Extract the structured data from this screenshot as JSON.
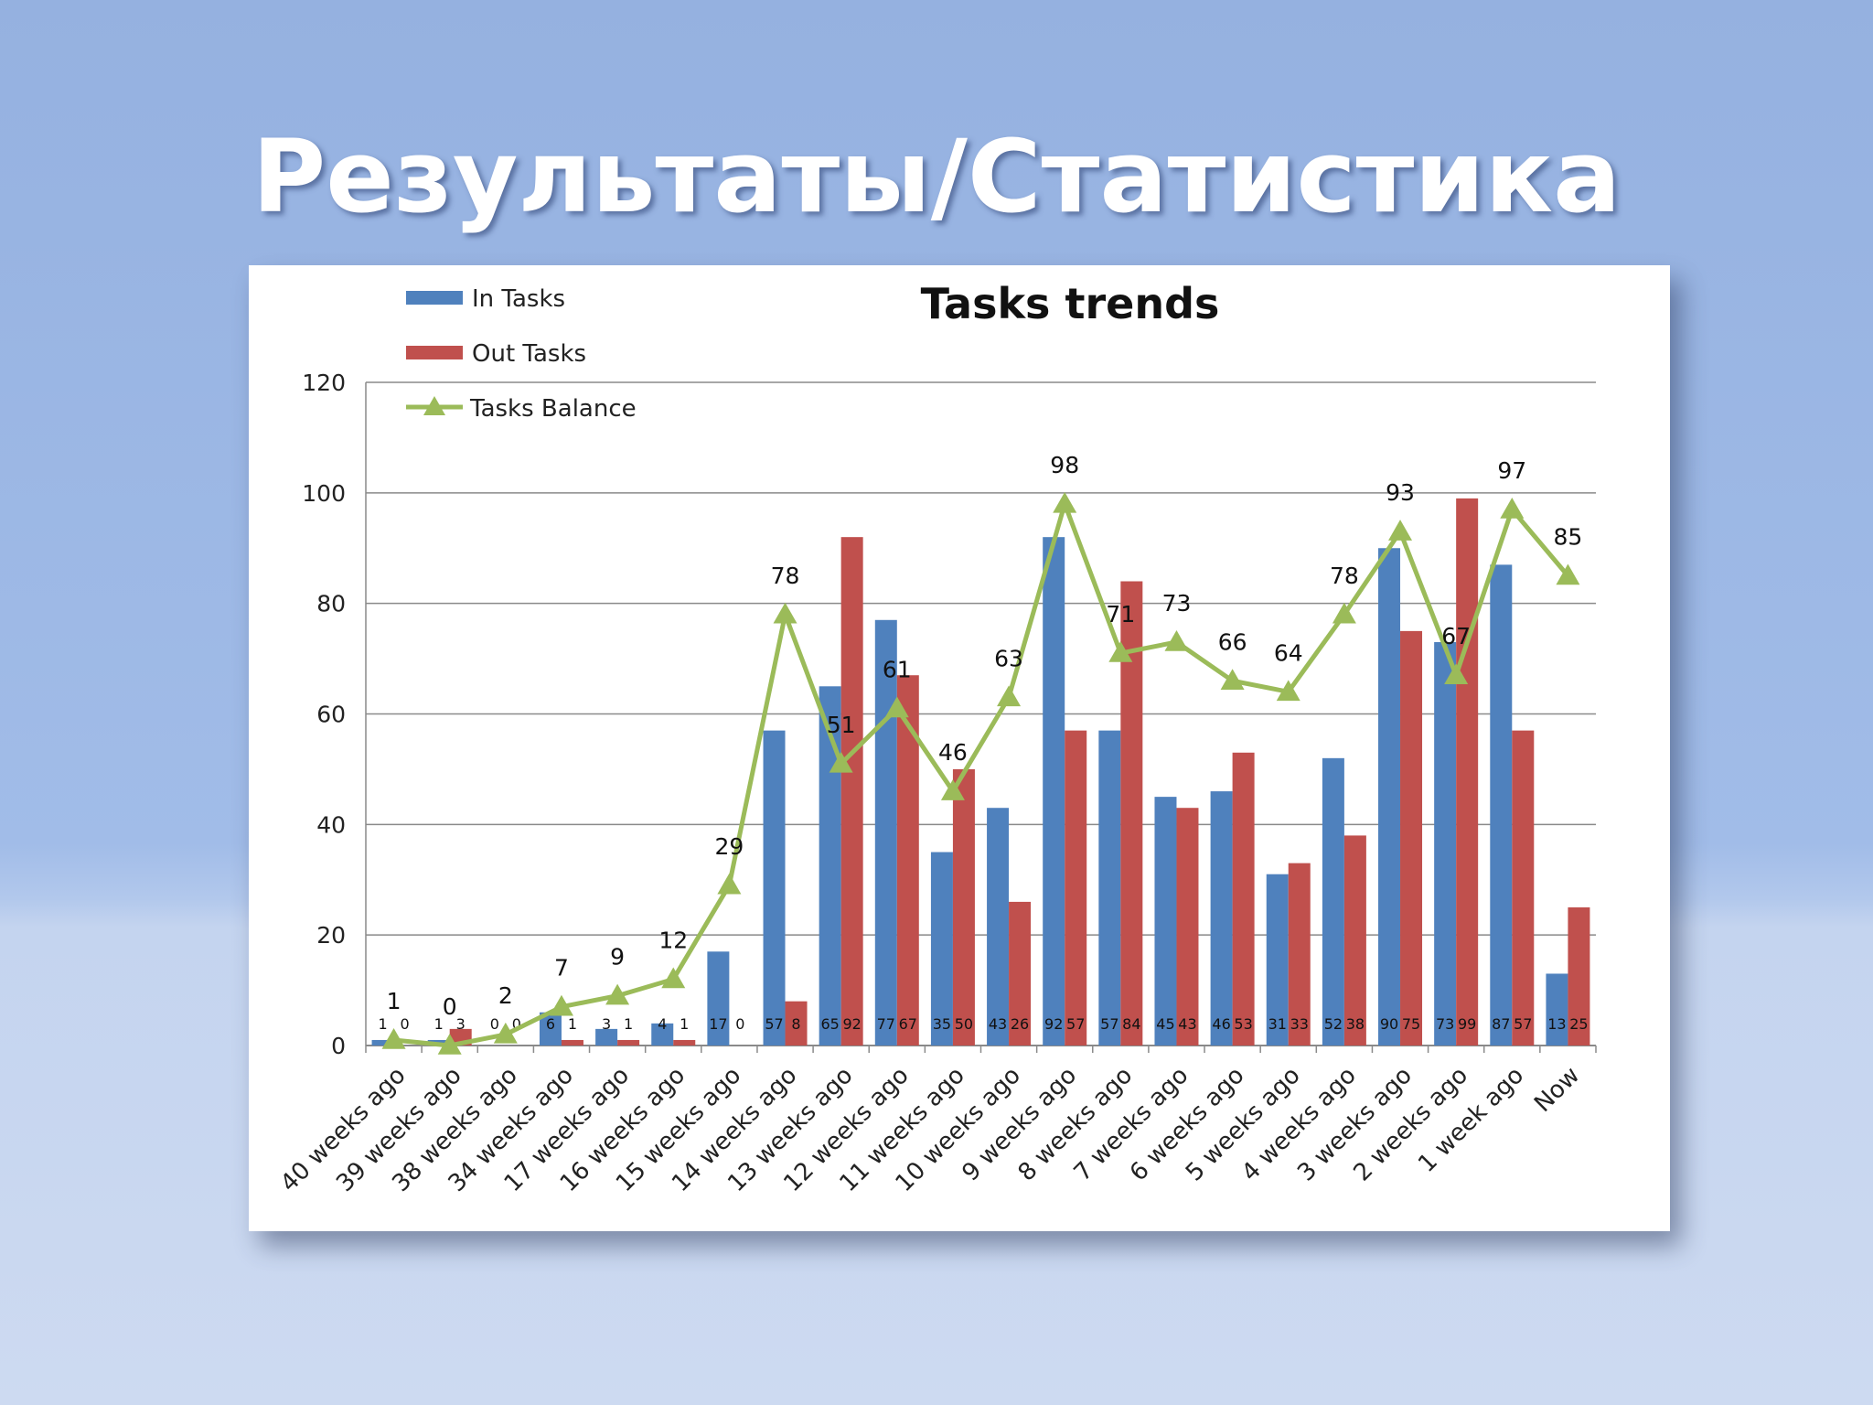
{
  "slide": {
    "title": "Результаты/Статистика"
  },
  "chart_data": {
    "type": "bar",
    "title": "Tasks trends",
    "xlabel": "",
    "ylabel": "",
    "ylim": [
      0,
      120
    ],
    "yticks": [
      0,
      20,
      40,
      60,
      80,
      100,
      120
    ],
    "grid": true,
    "legend_position": "top-left",
    "categories": [
      "40 weeks ago",
      "39 weeks ago",
      "38 weeks ago",
      "34 weeks ago",
      "17 weeks ago",
      "16 weeks ago",
      "15 weeks ago",
      "14 weeks ago",
      "13 weeks ago",
      "12 weeks ago",
      "11 weeks ago",
      "10 weeks ago",
      "9 weeks ago",
      "8 weeks ago",
      "7 weeks ago",
      "6 weeks ago",
      "5 weeks ago",
      "4 weeks ago",
      "3 weeks ago",
      "2 weeks ago",
      "1 week ago",
      "Now"
    ],
    "series": [
      {
        "name": "In Tasks",
        "kind": "bar",
        "color": "#4f81bd",
        "values": [
          1,
          1,
          0,
          6,
          3,
          4,
          17,
          57,
          65,
          77,
          35,
          43,
          92,
          57,
          45,
          46,
          31,
          52,
          90,
          73,
          87,
          13
        ]
      },
      {
        "name": "Out Tasks",
        "kind": "bar",
        "color": "#c0504d",
        "values": [
          0,
          3,
          0,
          1,
          1,
          1,
          0,
          8,
          92,
          67,
          50,
          26,
          57,
          84,
          43,
          53,
          33,
          38,
          75,
          99,
          57,
          25
        ]
      },
      {
        "name": "Tasks Balance",
        "kind": "line",
        "color": "#9bbb59",
        "values": [
          1,
          0,
          2,
          7,
          9,
          12,
          29,
          78,
          51,
          61,
          46,
          63,
          98,
          71,
          73,
          66,
          64,
          78,
          93,
          67,
          97,
          85
        ]
      }
    ]
  }
}
